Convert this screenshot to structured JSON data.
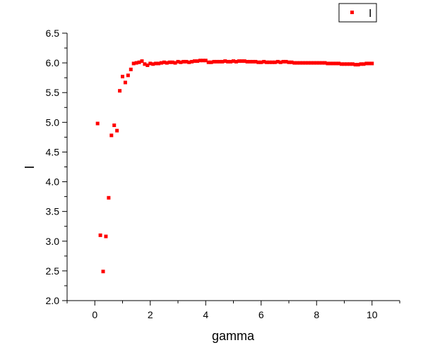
{
  "chart_data": {
    "type": "scatter",
    "title": "",
    "xlabel": "gamma",
    "ylabel": "I",
    "xlim": [
      -1,
      11
    ],
    "ylim": [
      2.0,
      6.5
    ],
    "xticks": [
      0,
      2,
      4,
      6,
      8,
      10
    ],
    "xtick_labels": [
      "0",
      "2",
      "4",
      "6",
      "8",
      "10"
    ],
    "yticks": [
      2.0,
      2.5,
      3.0,
      3.5,
      4.0,
      4.5,
      5.0,
      5.5,
      6.0,
      6.5
    ],
    "ytick_labels": [
      "2.0",
      "2.5",
      "3.0",
      "3.5",
      "4.0",
      "4.5",
      "5.0",
      "5.5",
      "6.0",
      "6.5"
    ],
    "grid": false,
    "legend_position": "top-right",
    "marker_color": "#ff0000",
    "series": [
      {
        "name": "I",
        "x": [
          0.1,
          0.2,
          0.3,
          0.4,
          0.5,
          0.6,
          0.7,
          0.8,
          0.9,
          1.0,
          1.1,
          1.2,
          1.3,
          1.4,
          1.5,
          1.6,
          1.7,
          1.8,
          1.9,
          2.0,
          2.1,
          2.2,
          2.3,
          2.4,
          2.5,
          2.6,
          2.7,
          2.8,
          2.9,
          3.0,
          3.1,
          3.2,
          3.3,
          3.4,
          3.5,
          3.6,
          3.7,
          3.8,
          3.9,
          4.0,
          4.1,
          4.2,
          4.3,
          4.4,
          4.5,
          4.6,
          4.7,
          4.8,
          4.9,
          5.0,
          5.1,
          5.2,
          5.3,
          5.4,
          5.5,
          5.6,
          5.7,
          5.8,
          5.9,
          6.0,
          6.1,
          6.2,
          6.3,
          6.4,
          6.5,
          6.6,
          6.7,
          6.8,
          6.9,
          7.0,
          7.1,
          7.2,
          7.3,
          7.4,
          7.5,
          7.6,
          7.7,
          7.8,
          7.9,
          8.0,
          8.1,
          8.2,
          8.3,
          8.4,
          8.5,
          8.6,
          8.7,
          8.8,
          8.9,
          9.0,
          9.1,
          9.2,
          9.3,
          9.4,
          9.5,
          9.6,
          9.7,
          9.8,
          9.9,
          10.0
        ],
        "y": [
          4.98,
          3.1,
          2.49,
          3.08,
          3.73,
          4.78,
          4.95,
          4.86,
          5.53,
          5.77,
          5.67,
          5.79,
          5.89,
          5.99,
          6.0,
          6.01,
          6.03,
          5.98,
          5.96,
          5.99,
          5.98,
          5.99,
          5.99,
          6.0,
          6.01,
          6.0,
          6.01,
          6.01,
          6.0,
          6.02,
          6.01,
          6.02,
          6.02,
          6.01,
          6.02,
          6.03,
          6.03,
          6.04,
          6.04,
          6.04,
          6.01,
          6.01,
          6.02,
          6.02,
          6.02,
          6.02,
          6.03,
          6.02,
          6.02,
          6.03,
          6.02,
          6.03,
          6.03,
          6.03,
          6.02,
          6.02,
          6.02,
          6.02,
          6.01,
          6.01,
          6.02,
          6.01,
          6.01,
          6.01,
          6.01,
          6.02,
          6.01,
          6.02,
          6.02,
          6.01,
          6.01,
          6.0,
          6.0,
          6.0,
          6.0,
          6.0,
          6.0,
          6.0,
          6.0,
          6.0,
          6.0,
          6.0,
          6.0,
          5.99,
          5.99,
          5.99,
          5.99,
          5.99,
          5.98,
          5.98,
          5.98,
          5.98,
          5.98,
          5.97,
          5.97,
          5.98,
          5.98,
          5.99,
          5.99,
          5.99
        ]
      }
    ]
  }
}
